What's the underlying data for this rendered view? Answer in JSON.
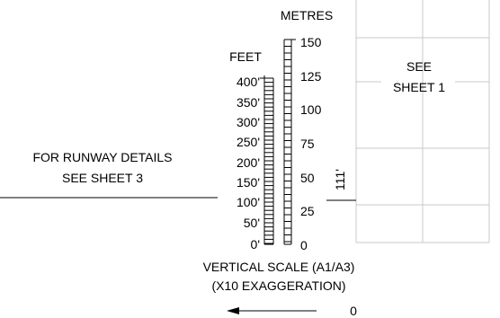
{
  "scale": {
    "feet_label": "FEET",
    "metres_label": "METRES",
    "feet_ticks": [
      "400'",
      "350'",
      "300'",
      "250'",
      "200'",
      "150'",
      "100'",
      "50'",
      "0'"
    ],
    "metres_ticks": [
      "150",
      "125",
      "100",
      "75",
      "50",
      "25",
      "0"
    ],
    "caption_line1": "VERTICAL SCALE (A1/A3)",
    "caption_line2": "(X10 EXAGGERATION)"
  },
  "notes": {
    "runway_line1": "FOR RUNWAY DETAILS",
    "runway_line2": "SEE SHEET 3",
    "see_line1": "SEE",
    "see_line2": "SHEET 1"
  },
  "elevation_label": "111'",
  "origin_label": "0",
  "colors": {
    "ink": "#000000",
    "grid": "#c8c8c8"
  }
}
